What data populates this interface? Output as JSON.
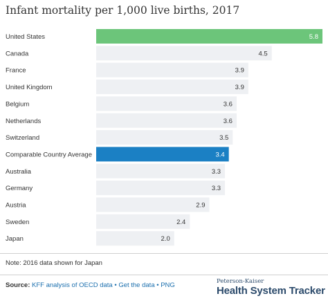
{
  "chart_data": {
    "type": "bar",
    "orientation": "horizontal",
    "title": "Infant mortality per 1,000 live births, 2017",
    "categories": [
      "United States",
      "Canada",
      "France",
      "United Kingdom",
      "Belgium",
      "Netherlands",
      "Switzerland",
      "Comparable Country Average",
      "Australia",
      "Germany",
      "Austria",
      "Sweden",
      "Japan"
    ],
    "values": [
      5.8,
      4.5,
      3.9,
      3.9,
      3.6,
      3.6,
      3.5,
      3.4,
      3.3,
      3.3,
      2.9,
      2.4,
      2.0
    ],
    "value_labels": [
      "5.8",
      "4.5",
      "3.9",
      "3.9",
      "3.6",
      "3.6",
      "3.5",
      "3.4",
      "3.3",
      "3.3",
      "2.9",
      "2.4",
      "2.0"
    ],
    "xlim": [
      0,
      5.8
    ],
    "grid": false,
    "legend": "none",
    "highlight": {
      "United States": "#6cc57a",
      "Comparable Country Average": "#1b80c4"
    },
    "default_bar_color": "#eef0f3"
  },
  "note": "Note: 2016 data shown for Japan",
  "footer": {
    "source_label": "Source:",
    "source_link": "KFF analysis of OECD data",
    "separator": "•",
    "get_data_link": "Get the data",
    "png_link": "PNG"
  },
  "brand": {
    "top": "Peterson-Kaiser",
    "main": "Health System Tracker"
  },
  "colors": {
    "title": "#333333",
    "link": "#1b6fae",
    "brand": "#2b4a6b",
    "divider": "#cfcfcf"
  }
}
